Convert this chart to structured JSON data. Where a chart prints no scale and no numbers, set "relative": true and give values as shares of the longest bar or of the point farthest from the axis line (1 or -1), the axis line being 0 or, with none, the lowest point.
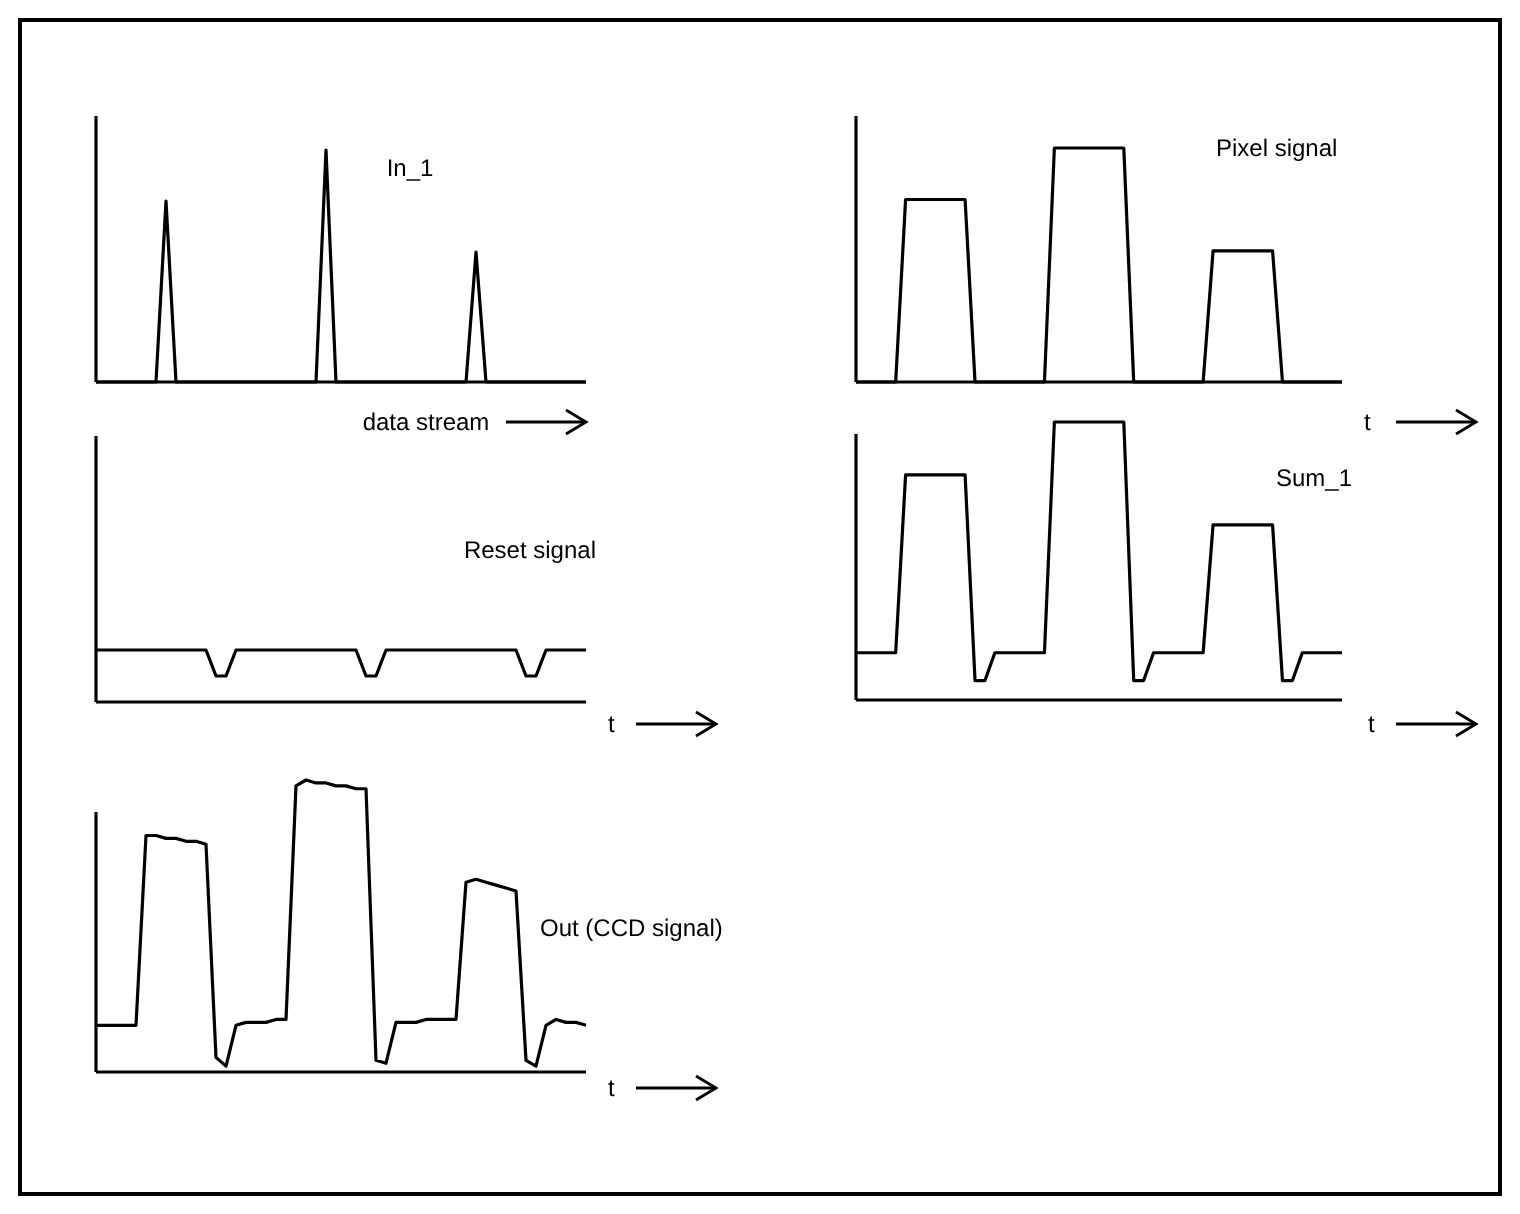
{
  "chart_data": [
    {
      "type": "line",
      "title": "In_1",
      "xlabel": "data stream",
      "relative": true,
      "color": "#000000",
      "categories": [
        null,
        null,
        null,
        null,
        null,
        null,
        null,
        null,
        null,
        null,
        null,
        null,
        null,
        null,
        null,
        null,
        null,
        null,
        null,
        null,
        null,
        null,
        null,
        null,
        null,
        null,
        null,
        null,
        null,
        null,
        null,
        null,
        null,
        null,
        null,
        null,
        null,
        null,
        null,
        null,
        null,
        null,
        null,
        null,
        null,
        null,
        null,
        null,
        null,
        null
      ],
      "values": [
        0,
        0,
        0,
        0,
        0,
        0,
        0,
        0.78,
        0,
        0,
        0,
        0,
        0,
        0,
        0,
        0,
        0,
        0,
        0,
        0,
        0,
        0,
        0,
        1,
        0,
        0,
        0,
        0,
        0,
        0,
        0,
        0,
        0,
        0,
        0,
        0,
        0,
        0,
        0.56,
        0,
        0,
        0,
        0,
        0,
        0,
        0,
        0,
        0,
        0,
        0
      ]
    },
    {
      "type": "line",
      "title": "Pixel signal",
      "xlabel": "t",
      "relative": true,
      "color": "#000000",
      "categories": [
        null,
        null,
        null,
        null,
        null,
        null,
        null,
        null,
        null,
        null,
        null,
        null,
        null,
        null,
        null,
        null,
        null,
        null,
        null,
        null,
        null,
        null,
        null,
        null,
        null,
        null,
        null,
        null,
        null,
        null,
        null,
        null,
        null,
        null,
        null,
        null,
        null,
        null,
        null,
        null,
        null,
        null,
        null,
        null,
        null,
        null,
        null,
        null,
        null,
        null
      ],
      "values": [
        0,
        0,
        0,
        0,
        0,
        0.78,
        0.78,
        0.78,
        0.78,
        0.78,
        0.78,
        0.78,
        0,
        0,
        0,
        0,
        0,
        0,
        0,
        0,
        1,
        1,
        1,
        1,
        1,
        1,
        1,
        1,
        0,
        0,
        0,
        0,
        0,
        0,
        0,
        0,
        0.56,
        0.56,
        0.56,
        0.56,
        0.56,
        0.56,
        0.56,
        0,
        0,
        0,
        0,
        0,
        0,
        0
      ]
    },
    {
      "type": "line",
      "title": "Reset signal",
      "xlabel": "t",
      "relative": true,
      "color": "#000000",
      "categories": [
        null,
        null,
        null,
        null,
        null,
        null,
        null,
        null,
        null,
        null,
        null,
        null,
        null,
        null,
        null,
        null,
        null,
        null,
        null,
        null,
        null,
        null,
        null,
        null,
        null,
        null,
        null,
        null,
        null,
        null,
        null,
        null,
        null,
        null,
        null,
        null,
        null,
        null,
        null,
        null,
        null,
        null,
        null,
        null,
        null,
        null,
        null,
        null,
        null,
        null
      ],
      "values": [
        1,
        1,
        1,
        1,
        1,
        1,
        1,
        1,
        1,
        1,
        1,
        1,
        0.5,
        0.5,
        1,
        1,
        1,
        1,
        1,
        1,
        1,
        1,
        1,
        1,
        1,
        1,
        1,
        0.5,
        0.5,
        1,
        1,
        1,
        1,
        1,
        1,
        1,
        1,
        1,
        1,
        1,
        1,
        1,
        1,
        0.5,
        0.5,
        1,
        1,
        1,
        1,
        1
      ]
    },
    {
      "type": "line",
      "title": "Sum_1",
      "xlabel": "t",
      "relative": true,
      "color": "#000000",
      "categories": [
        null,
        null,
        null,
        null,
        null,
        null,
        null,
        null,
        null,
        null,
        null,
        null,
        null,
        null,
        null,
        null,
        null,
        null,
        null,
        null,
        null,
        null,
        null,
        null,
        null,
        null,
        null,
        null,
        null,
        null,
        null,
        null,
        null,
        null,
        null,
        null,
        null,
        null,
        null,
        null,
        null,
        null,
        null,
        null,
        null,
        null,
        null,
        null,
        null,
        null
      ],
      "values": [
        0.17,
        0.17,
        0.17,
        0.17,
        0.17,
        0.81,
        0.81,
        0.81,
        0.81,
        0.81,
        0.81,
        0.81,
        0.07,
        0.07,
        0.17,
        0.17,
        0.17,
        0.17,
        0.17,
        0.17,
        1,
        1,
        1,
        1,
        1,
        1,
        1,
        1,
        0.07,
        0.07,
        0.17,
        0.17,
        0.17,
        0.17,
        0.17,
        0.17,
        0.63,
        0.63,
        0.63,
        0.63,
        0.63,
        0.63,
        0.63,
        0.07,
        0.07,
        0.17,
        0.17,
        0.17,
        0.17,
        0.17
      ]
    },
    {
      "type": "line",
      "title": "Out  (CCD signal)",
      "xlabel": "t",
      "relative": true,
      "color": "#000000",
      "categories": [
        null,
        null,
        null,
        null,
        null,
        null,
        null,
        null,
        null,
        null,
        null,
        null,
        null,
        null,
        null,
        null,
        null,
        null,
        null,
        null,
        null,
        null,
        null,
        null,
        null,
        null,
        null,
        null,
        null,
        null,
        null,
        null,
        null,
        null,
        null,
        null,
        null,
        null,
        null,
        null,
        null,
        null,
        null,
        null,
        null,
        null,
        null,
        null,
        null,
        null
      ],
      "values": [
        0.16,
        0.16,
        0.16,
        0.16,
        0.16,
        0.81,
        0.81,
        0.8,
        0.8,
        0.79,
        0.79,
        0.78,
        0.05,
        0.02,
        0.16,
        0.17,
        0.17,
        0.17,
        0.18,
        0.18,
        0.98,
        1,
        0.99,
        0.99,
        0.98,
        0.98,
        0.97,
        0.97,
        0.04,
        0.03,
        0.17,
        0.17,
        0.17,
        0.18,
        0.18,
        0.18,
        0.18,
        0.65,
        0.66,
        0.65,
        0.64,
        0.63,
        0.62,
        0.04,
        0.02,
        0.16,
        0.18,
        0.17,
        0.17,
        0.16
      ]
    }
  ]
}
